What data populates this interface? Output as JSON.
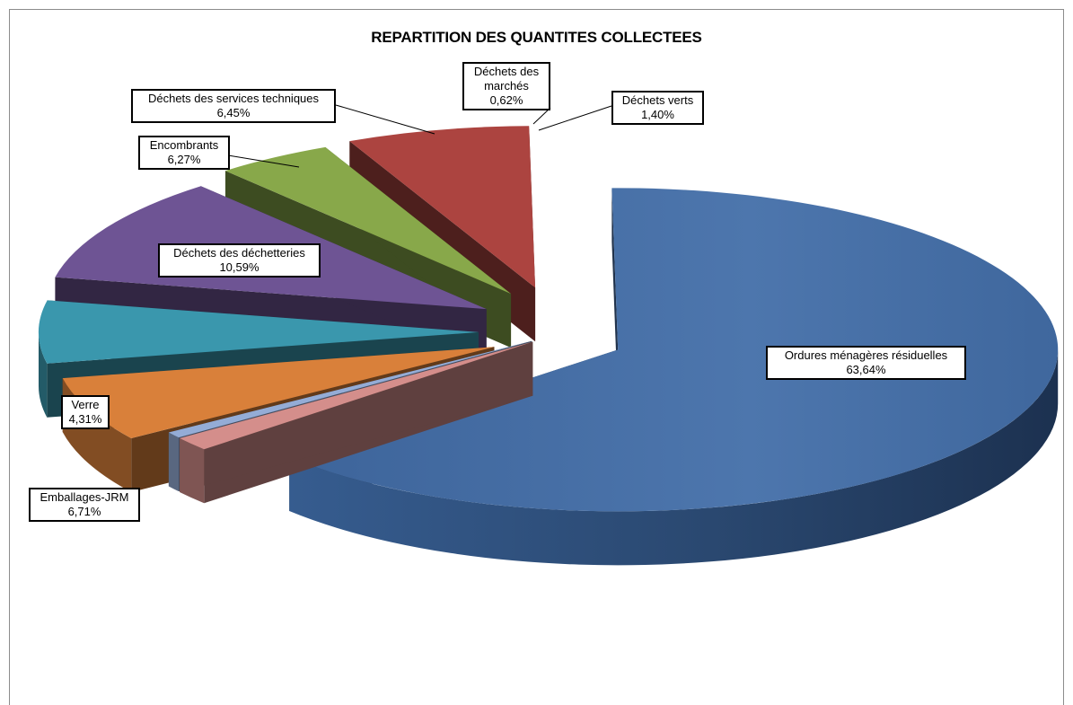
{
  "chart_data": {
    "type": "pie",
    "title": "REPARTITION DES QUANTITES COLLECTEES",
    "slices": [
      {
        "name": "Ordures ménagères résiduelles",
        "value": 63.64,
        "label": "63,64%",
        "color": "#4a72a8"
      },
      {
        "name": "Déchets verts",
        "value": 1.4,
        "label": "1,40%",
        "color": "#d48e8b"
      },
      {
        "name": "Déchets des marchés",
        "value": 0.62,
        "label": "0,62%",
        "color": "#94acd6"
      },
      {
        "name": "Déchets des services techniques",
        "value": 6.45,
        "label": "6,45%",
        "color": "#d9803a"
      },
      {
        "name": "Encombrants",
        "value": 6.27,
        "label": "6,27%",
        "color": "#3a97ad"
      },
      {
        "name": "Déchets des déchetteries",
        "value": 10.59,
        "label": "10,59%",
        "color": "#6e5494"
      },
      {
        "name": "Verre",
        "value": 4.31,
        "label": "4,31%",
        "color": "#88a84a"
      },
      {
        "name": "Emballages-JRM",
        "value": 6.71,
        "label": "6,71%",
        "color": "#ac4440"
      }
    ]
  },
  "labels": {
    "ordures_1": "Ordures ménagères résiduelles",
    "verts_1": "Déchets verts",
    "marches_1": "Déchets des",
    "marches_2": "marchés",
    "services_1": "Déchets des services techniques",
    "encombrants_1": "Encombrants",
    "decheteries_1": "Déchets des déchetteries",
    "verre_1": "Verre",
    "emballages_1": "Emballages-JRM"
  }
}
